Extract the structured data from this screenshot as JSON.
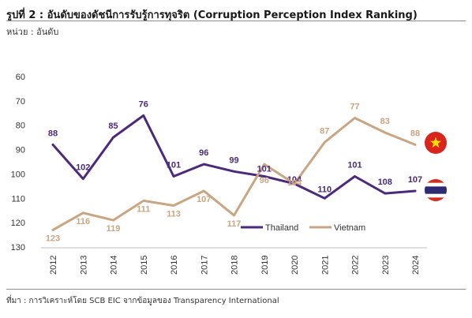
{
  "title": "รูปที่ 2 : อันดับของดัชนีการรับรู้การทุจริต (Corruption Perception Index Ranking)",
  "unit": "หน่วย : อันดับ",
  "source": "ที่มา : การวิเคราะห์โดย SCB EIC จากข้อมูลของ Transparency International",
  "colors": {
    "thailand": "#4b2a7b",
    "vietnam": "#c9a582",
    "vn_flag": "#da251d",
    "vn_star": "#ffde00",
    "th_red": "#d52b1e",
    "th_blue": "#2d2a72"
  },
  "icons": [
    "vietnam-flag-icon",
    "thailand-flag-icon"
  ],
  "chart_data": {
    "type": "line",
    "x": [
      "2012",
      "2013",
      "2014",
      "2015",
      "2016",
      "2017",
      "2018",
      "2019",
      "2020",
      "2021",
      "2022",
      "2023",
      "2024"
    ],
    "y_ticks": [
      "60",
      "70",
      "80",
      "90",
      "100",
      "110",
      "120",
      "130"
    ],
    "ylim": [
      60,
      130
    ],
    "y_inverted": true,
    "grid": false,
    "legend_position": "bottom-right",
    "series": [
      {
        "name": "Thailand",
        "color": "#4b2a7b",
        "values": [
          88,
          102,
          85,
          76,
          101,
          96,
          99,
          101,
          104,
          110,
          101,
          108,
          107
        ],
        "labels": [
          "88",
          "102",
          "85",
          "76",
          "101",
          "96",
          "99",
          "101",
          "104",
          "110",
          "101",
          "108",
          "107"
        ]
      },
      {
        "name": "Vietnam",
        "color": "#c9a582",
        "values": [
          123,
          116,
          119,
          111,
          113,
          107,
          117,
          96,
          104,
          87,
          77,
          83,
          88
        ],
        "labels": [
          "123",
          "116",
          "119",
          "111",
          "113",
          "107",
          "117",
          "96",
          "104",
          "87",
          "77",
          "83",
          "88"
        ]
      }
    ]
  }
}
